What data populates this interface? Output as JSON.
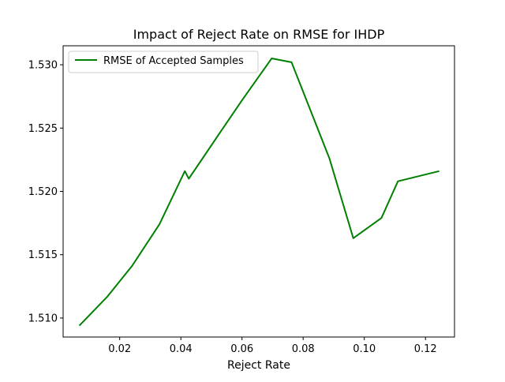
{
  "chart_data": {
    "type": "line",
    "title": "Impact of Reject Rate on RMSE for IHDP",
    "xlabel": "Reject Rate",
    "ylabel": "",
    "xlim": [
      0.0015,
      0.1295
    ],
    "ylim": [
      1.5085,
      1.5315
    ],
    "xticks": [
      0.02,
      0.04,
      0.06,
      0.08,
      0.1,
      0.12
    ],
    "xtick_labels": [
      "0.02",
      "0.04",
      "0.06",
      "0.08",
      "0.10",
      "0.12"
    ],
    "yticks": [
      1.51,
      1.515,
      1.52,
      1.525,
      1.53
    ],
    "ytick_labels": [
      "1.510",
      "1.515",
      "1.520",
      "1.525",
      "1.530"
    ],
    "grid": false,
    "legend_position": "upper left",
    "series": [
      {
        "name": "RMSE of Accepted Samples",
        "color": "#008000",
        "x": [
          0.0068,
          0.016,
          0.024,
          0.033,
          0.0413,
          0.0426,
          0.0524,
          0.0603,
          0.0697,
          0.0762,
          0.0886,
          0.0964,
          0.1056,
          0.111,
          0.1245
        ],
        "y": [
          1.5094,
          1.5117,
          1.5141,
          1.5174,
          1.5216,
          1.521,
          1.5245,
          1.5273,
          1.5305,
          1.5302,
          1.5226,
          1.5163,
          1.5179,
          1.5208,
          1.5216
        ]
      }
    ]
  }
}
